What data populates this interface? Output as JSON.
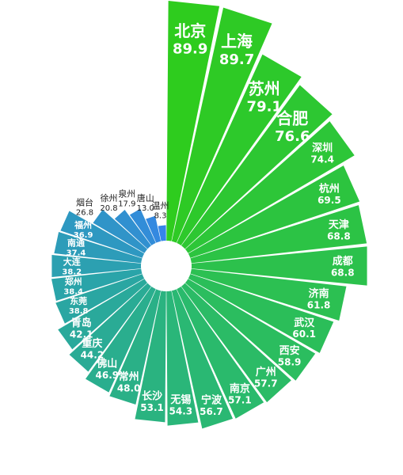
{
  "chart_data": {
    "type": "bar",
    "subtype": "radial-rose",
    "categories": [
      "北京",
      "上海",
      "苏州",
      "合肥",
      "深圳",
      "杭州",
      "天津",
      "成都",
      "济南",
      "武汉",
      "西安",
      "广州",
      "南京",
      "宁波",
      "无锡",
      "长沙",
      "常州",
      "佛山",
      "重庆",
      "青岛",
      "东莞",
      "郑州",
      "大连",
      "南通",
      "福州",
      "烟台",
      "徐州",
      "泉州",
      "唐山",
      "温州"
    ],
    "values": [
      89.9,
      89.7,
      79.1,
      76.6,
      74.4,
      69.5,
      68.8,
      68.8,
      61.8,
      60.1,
      58.9,
      57.7,
      57.1,
      56.7,
      54.3,
      53.1,
      48.0,
      46.9,
      44.2,
      42.1,
      38.8,
      38.4,
      38.2,
      37.4,
      36.9,
      26.8,
      20.8,
      17.9,
      13.0,
      8.3
    ],
    "value_labels": [
      "89.9",
      "89.7",
      "79.1",
      "76.6",
      "74.4",
      "69.5",
      "68.8",
      "68.8",
      "61.8",
      "60.1",
      "58.9",
      "57.7",
      "57.1",
      "56.7",
      "54.3",
      "53.1",
      "48.0",
      "46.9",
      "44.2",
      "42.1",
      "38.8",
      "38.4",
      "38.2",
      "37.4",
      "36.9",
      "26.8",
      "20.8",
      "17.9",
      "13.0",
      "8.3"
    ],
    "ylim": [
      0,
      89.9
    ],
    "grid": false,
    "legend": "none",
    "colors": {
      "high": "#2ecc1e",
      "mid": "#2ab873",
      "low_warm": "#2aa4a8",
      "low_cool": "#3585e8"
    }
  }
}
